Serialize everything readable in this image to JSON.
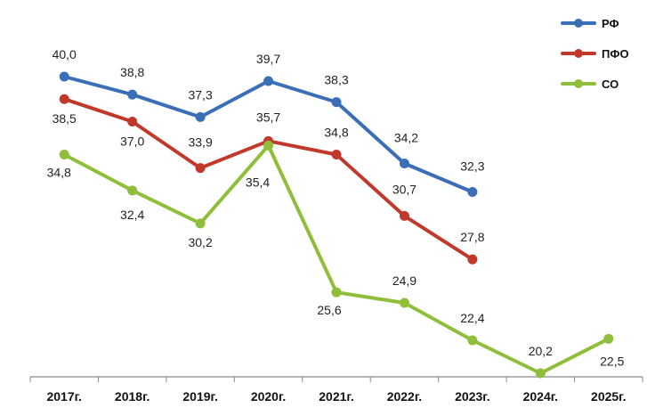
{
  "chart_data": {
    "type": "line",
    "categories": [
      "2017г.",
      "2018г.",
      "2019г.",
      "2020г.",
      "2021г.",
      "2022г.",
      "2023г.",
      "2024г.",
      "2025г."
    ],
    "series": [
      {
        "name": "РФ",
        "color": "#3a6fb8",
        "values": [
          40.0,
          38.8,
          37.3,
          39.7,
          38.3,
          34.2,
          32.3,
          null,
          null
        ],
        "labels": [
          "40,0",
          "38,8",
          "37,3",
          "39,7",
          "38,3",
          "34,2",
          "32,3",
          null,
          null
        ]
      },
      {
        "name": "ПФО",
        "color": "#c0392b",
        "values": [
          38.5,
          37.0,
          33.9,
          35.7,
          34.8,
          30.7,
          27.8,
          null,
          null
        ],
        "labels": [
          "38,5",
          "37,0",
          "33,9",
          "35,7",
          "34,8",
          "30,7",
          "27,8",
          null,
          null
        ]
      },
      {
        "name": "СО",
        "color": "#8fbf3a",
        "values": [
          34.8,
          32.4,
          30.2,
          35.4,
          25.6,
          24.9,
          22.4,
          20.2,
          22.5
        ],
        "labels": [
          "34,8",
          "32,4",
          "30,2",
          "35,4",
          "25,6",
          "24,9",
          "22,4",
          "20,2",
          "22,5"
        ]
      }
    ],
    "title": "",
    "xlabel": "",
    "ylabel": "",
    "grid": false,
    "legend_position": "top-right"
  }
}
